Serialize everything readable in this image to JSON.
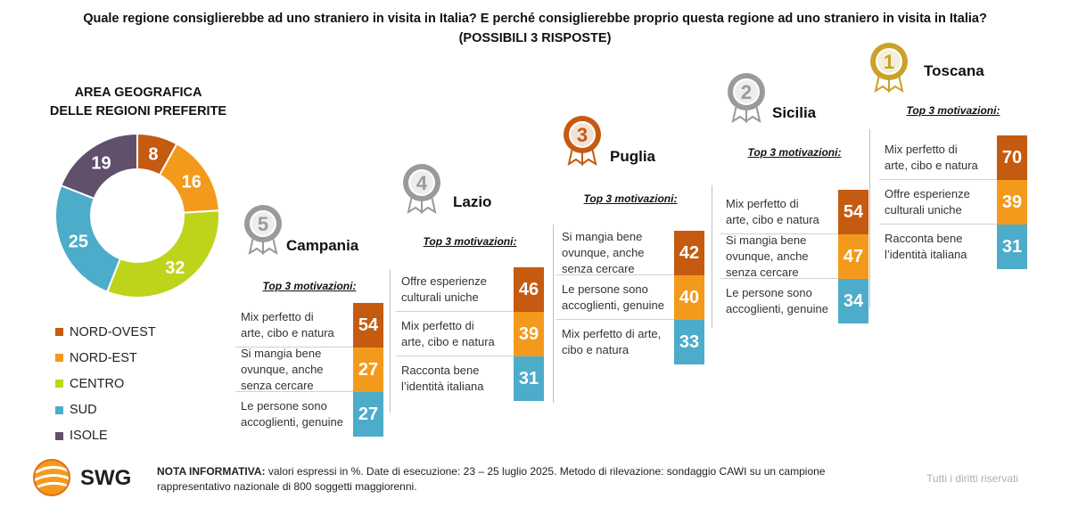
{
  "title": {
    "line1": "Quale regione consiglierebbe ad uno straniero in visita in Italia? E perché consiglierebbe proprio questa regione ad uno straniero in visita in Italia?",
    "line2": "(POSSIBILI 3 RISPOSTE)"
  },
  "colors": {
    "nord_ovest": "#c55a11",
    "nord_est": "#f39a1d",
    "centro": "#bed41a",
    "sud": "#4cacc9",
    "isole": "#60506b",
    "gold": "#c9a227",
    "silver": "#9a9a9a",
    "bronze": "#c55a11"
  },
  "chart_data": [
    {
      "type": "pie",
      "title": "AREA GEOGRAFICA DELLE REGIONI PREFERITE",
      "title_line1": "AREA GEOGRAFICA",
      "title_line2": "DELLE REGIONI PREFERITE",
      "legend_position": "bottom-left",
      "slices": [
        {
          "label": "NORD-OVEST",
          "value": 8,
          "color": "#c55a11"
        },
        {
          "label": "NORD-EST",
          "value": 16,
          "color": "#f39a1d"
        },
        {
          "label": "CENTRO",
          "value": 32,
          "color": "#bed41a"
        },
        {
          "label": "SUD",
          "value": 25,
          "color": "#4cacc9"
        },
        {
          "label": "ISOLE",
          "value": 19,
          "color": "#60506b"
        }
      ]
    },
    {
      "type": "table",
      "subtitle": "Top 3 motivazioni:",
      "regions": [
        {
          "rank": "1",
          "name": "Toscana",
          "medal": "gold",
          "motivations": [
            {
              "label": "Mix perfetto di arte, cibo e natura",
              "lines": [
                "Mix perfetto di",
                "arte, cibo e natura"
              ],
              "value": 70,
              "color": "#c55a11"
            },
            {
              "label": "Offre esperienze culturali uniche",
              "lines": [
                "Offre esperienze",
                "culturali uniche"
              ],
              "value": 39,
              "color": "#f39a1d"
            },
            {
              "label": "Racconta bene l’identità italiana",
              "lines": [
                "Racconta bene",
                "l’identità italiana"
              ],
              "value": 31,
              "color": "#4cacc9"
            }
          ]
        },
        {
          "rank": "2",
          "name": "Sicilia",
          "medal": "silver",
          "motivations": [
            {
              "label": "Mix perfetto di arte, cibo e natura",
              "lines": [
                "Mix perfetto di",
                "arte, cibo e natura"
              ],
              "value": 54,
              "color": "#c55a11"
            },
            {
              "label": "Si mangia bene ovunque, anche senza cercare",
              "lines": [
                "Si mangia bene",
                "ovunque, anche",
                "senza cercare"
              ],
              "value": 47,
              "color": "#f39a1d"
            },
            {
              "label": "Le persone sono accoglienti, genuine",
              "lines": [
                "Le persone sono",
                "accoglienti, genuine"
              ],
              "value": 34,
              "color": "#4cacc9"
            }
          ]
        },
        {
          "rank": "3",
          "name": "Puglia",
          "medal": "bronze",
          "motivations": [
            {
              "label": "Si mangia bene ovunque, anche senza cercare",
              "lines": [
                "Si mangia bene",
                "ovunque, anche",
                "senza cercare"
              ],
              "value": 42,
              "color": "#c55a11"
            },
            {
              "label": "Le persone sono accoglienti, genuine",
              "lines": [
                "Le persone sono",
                "accoglienti, genuine"
              ],
              "value": 40,
              "color": "#f39a1d"
            },
            {
              "label": "Mix perfetto di arte, cibo e natura",
              "lines": [
                "Mix perfetto di arte,",
                "cibo e natura"
              ],
              "value": 33,
              "color": "#4cacc9"
            }
          ]
        },
        {
          "rank": "4",
          "name": "Lazio",
          "medal": "silver",
          "motivations": [
            {
              "label": "Offre esperienze culturali uniche",
              "lines": [
                "Offre esperienze",
                "culturali uniche"
              ],
              "value": 46,
              "color": "#c55a11"
            },
            {
              "label": "Mix perfetto di arte, cibo e natura",
              "lines": [
                "Mix perfetto di",
                "arte, cibo e natura"
              ],
              "value": 39,
              "color": "#f39a1d"
            },
            {
              "label": "Racconta bene l’identità italiana",
              "lines": [
                "Racconta bene",
                "l’identità italiana"
              ],
              "value": 31,
              "color": "#4cacc9"
            }
          ]
        },
        {
          "rank": "5",
          "name": "Campania",
          "medal": "silver",
          "motivations": [
            {
              "label": "Mix perfetto di arte, cibo e natura",
              "lines": [
                "Mix perfetto di",
                "arte, cibo e natura"
              ],
              "value": 54,
              "color": "#c55a11"
            },
            {
              "label": "Si mangia bene ovunque, anche senza cercare",
              "lines": [
                "Si mangia bene",
                "ovunque, anche",
                "senza cercare"
              ],
              "value": 27,
              "color": "#f39a1d"
            },
            {
              "label": "Le persone sono accoglienti, genuine",
              "lines": [
                "Le persone sono",
                "accoglienti, genuine"
              ],
              "value": 27,
              "color": "#4cacc9"
            }
          ]
        }
      ]
    }
  ],
  "footer": {
    "logo_text": "SWG",
    "note_label": "NOTA INFORMATIVA:",
    "note_text": " valori espressi in %. Date di esecuzione: 23 – 25 luglio 2025. Metodo di rilevazione: sondaggio CAWI su un campione rappresentativo nazionale di 800 soggetti maggiorenni.",
    "rights": "Tutti i diritti riservati"
  }
}
